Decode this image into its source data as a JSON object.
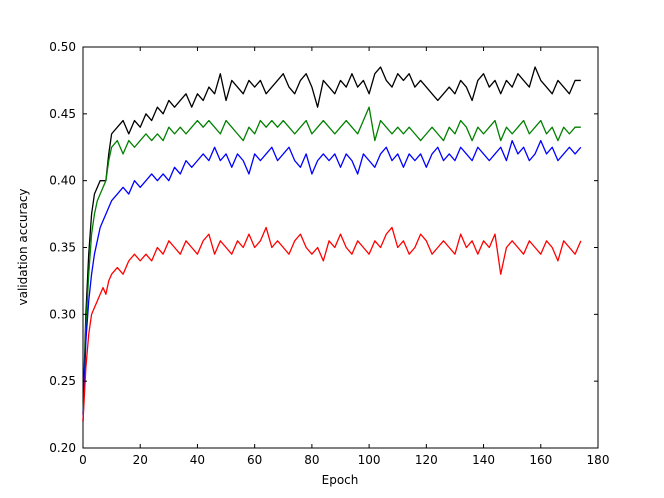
{
  "figure": {
    "background": "#ffffff",
    "frame_color": "#000000"
  },
  "chart_data": {
    "type": "line",
    "title": "",
    "xlabel": "Epoch",
    "ylabel": "validation accuracy",
    "xlim": [
      0,
      180
    ],
    "ylim": [
      0.2,
      0.5
    ],
    "grid": false,
    "legend": "none",
    "xticks": [
      0,
      20,
      40,
      60,
      80,
      100,
      120,
      140,
      160,
      180
    ],
    "xtick_labels": [
      "0",
      "20",
      "40",
      "60",
      "80",
      "100",
      "120",
      "140",
      "160",
      "180"
    ],
    "yticks": [
      0.2,
      0.25,
      0.3,
      0.35,
      0.4,
      0.45,
      0.5
    ],
    "ytick_labels": [
      "0.20",
      "0.25",
      "0.30",
      "0.35",
      "0.40",
      "0.45",
      "0.50"
    ],
    "x": [
      0,
      1,
      2,
      3,
      4,
      5,
      6,
      7,
      8,
      9,
      10,
      12,
      14,
      16,
      18,
      20,
      22,
      24,
      26,
      28,
      30,
      32,
      34,
      36,
      38,
      40,
      42,
      44,
      46,
      48,
      50,
      52,
      54,
      56,
      58,
      60,
      62,
      64,
      66,
      68,
      70,
      72,
      74,
      76,
      78,
      80,
      82,
      84,
      86,
      88,
      90,
      92,
      94,
      96,
      98,
      100,
      102,
      104,
      106,
      108,
      110,
      112,
      114,
      116,
      118,
      120,
      122,
      124,
      126,
      128,
      130,
      132,
      134,
      136,
      138,
      140,
      142,
      144,
      146,
      148,
      150,
      152,
      154,
      156,
      158,
      160,
      162,
      164,
      166,
      168,
      170,
      172,
      174
    ],
    "series": [
      {
        "name": "black",
        "color": "#000000",
        "values": [
          0.225,
          0.3,
          0.345,
          0.375,
          0.39,
          0.395,
          0.4,
          0.4,
          0.4,
          0.42,
          0.435,
          0.44,
          0.445,
          0.435,
          0.445,
          0.44,
          0.45,
          0.445,
          0.455,
          0.45,
          0.46,
          0.455,
          0.46,
          0.465,
          0.455,
          0.465,
          0.46,
          0.47,
          0.465,
          0.48,
          0.46,
          0.475,
          0.47,
          0.465,
          0.475,
          0.47,
          0.475,
          0.465,
          0.47,
          0.475,
          0.48,
          0.47,
          0.465,
          0.475,
          0.48,
          0.47,
          0.455,
          0.475,
          0.47,
          0.465,
          0.475,
          0.47,
          0.48,
          0.47,
          0.475,
          0.465,
          0.48,
          0.485,
          0.475,
          0.47,
          0.48,
          0.475,
          0.48,
          0.47,
          0.475,
          0.47,
          0.465,
          0.46,
          0.465,
          0.47,
          0.465,
          0.475,
          0.47,
          0.46,
          0.475,
          0.48,
          0.47,
          0.475,
          0.465,
          0.475,
          0.47,
          0.48,
          0.475,
          0.47,
          0.485,
          0.475,
          0.47,
          0.465,
          0.475,
          0.47,
          0.465,
          0.475,
          0.475
        ]
      },
      {
        "name": "green",
        "color": "#008000",
        "values": [
          0.22,
          0.29,
          0.33,
          0.36,
          0.375,
          0.385,
          0.39,
          0.395,
          0.4,
          0.415,
          0.425,
          0.43,
          0.42,
          0.43,
          0.425,
          0.43,
          0.435,
          0.43,
          0.435,
          0.43,
          0.44,
          0.435,
          0.44,
          0.435,
          0.44,
          0.445,
          0.44,
          0.445,
          0.44,
          0.435,
          0.445,
          0.44,
          0.435,
          0.43,
          0.44,
          0.435,
          0.445,
          0.44,
          0.445,
          0.44,
          0.445,
          0.44,
          0.435,
          0.44,
          0.445,
          0.435,
          0.44,
          0.445,
          0.44,
          0.435,
          0.44,
          0.445,
          0.44,
          0.435,
          0.445,
          0.455,
          0.43,
          0.445,
          0.44,
          0.435,
          0.44,
          0.435,
          0.44,
          0.435,
          0.43,
          0.435,
          0.44,
          0.435,
          0.43,
          0.44,
          0.435,
          0.445,
          0.44,
          0.43,
          0.44,
          0.435,
          0.44,
          0.445,
          0.43,
          0.44,
          0.435,
          0.44,
          0.445,
          0.435,
          0.44,
          0.445,
          0.435,
          0.44,
          0.43,
          0.44,
          0.435,
          0.44,
          0.44
        ]
      },
      {
        "name": "blue",
        "color": "#0000ff",
        "values": [
          0.22,
          0.28,
          0.31,
          0.33,
          0.345,
          0.355,
          0.365,
          0.37,
          0.375,
          0.38,
          0.385,
          0.39,
          0.395,
          0.39,
          0.4,
          0.395,
          0.4,
          0.405,
          0.4,
          0.405,
          0.4,
          0.41,
          0.405,
          0.415,
          0.41,
          0.415,
          0.42,
          0.415,
          0.425,
          0.415,
          0.42,
          0.41,
          0.42,
          0.415,
          0.405,
          0.42,
          0.415,
          0.42,
          0.425,
          0.415,
          0.42,
          0.425,
          0.415,
          0.41,
          0.42,
          0.405,
          0.415,
          0.42,
          0.415,
          0.42,
          0.41,
          0.42,
          0.415,
          0.405,
          0.42,
          0.415,
          0.41,
          0.42,
          0.425,
          0.415,
          0.42,
          0.41,
          0.42,
          0.415,
          0.42,
          0.41,
          0.42,
          0.425,
          0.415,
          0.42,
          0.415,
          0.425,
          0.42,
          0.415,
          0.425,
          0.42,
          0.415,
          0.42,
          0.425,
          0.415,
          0.43,
          0.42,
          0.425,
          0.415,
          0.42,
          0.43,
          0.42,
          0.425,
          0.415,
          0.42,
          0.425,
          0.42,
          0.425
        ]
      },
      {
        "name": "red",
        "color": "#ff0000",
        "values": [
          0.22,
          0.26,
          0.285,
          0.3,
          0.305,
          0.31,
          0.315,
          0.32,
          0.315,
          0.325,
          0.33,
          0.335,
          0.33,
          0.34,
          0.345,
          0.34,
          0.345,
          0.34,
          0.35,
          0.345,
          0.355,
          0.35,
          0.345,
          0.355,
          0.35,
          0.345,
          0.355,
          0.36,
          0.345,
          0.355,
          0.35,
          0.345,
          0.355,
          0.35,
          0.36,
          0.35,
          0.355,
          0.365,
          0.35,
          0.355,
          0.35,
          0.345,
          0.355,
          0.36,
          0.35,
          0.345,
          0.35,
          0.34,
          0.355,
          0.35,
          0.36,
          0.35,
          0.345,
          0.355,
          0.35,
          0.345,
          0.355,
          0.35,
          0.36,
          0.365,
          0.35,
          0.355,
          0.345,
          0.35,
          0.36,
          0.355,
          0.345,
          0.35,
          0.355,
          0.35,
          0.345,
          0.36,
          0.35,
          0.355,
          0.345,
          0.355,
          0.35,
          0.36,
          0.33,
          0.35,
          0.355,
          0.35,
          0.345,
          0.355,
          0.35,
          0.345,
          0.355,
          0.35,
          0.34,
          0.355,
          0.35,
          0.345,
          0.355
        ]
      }
    ]
  }
}
